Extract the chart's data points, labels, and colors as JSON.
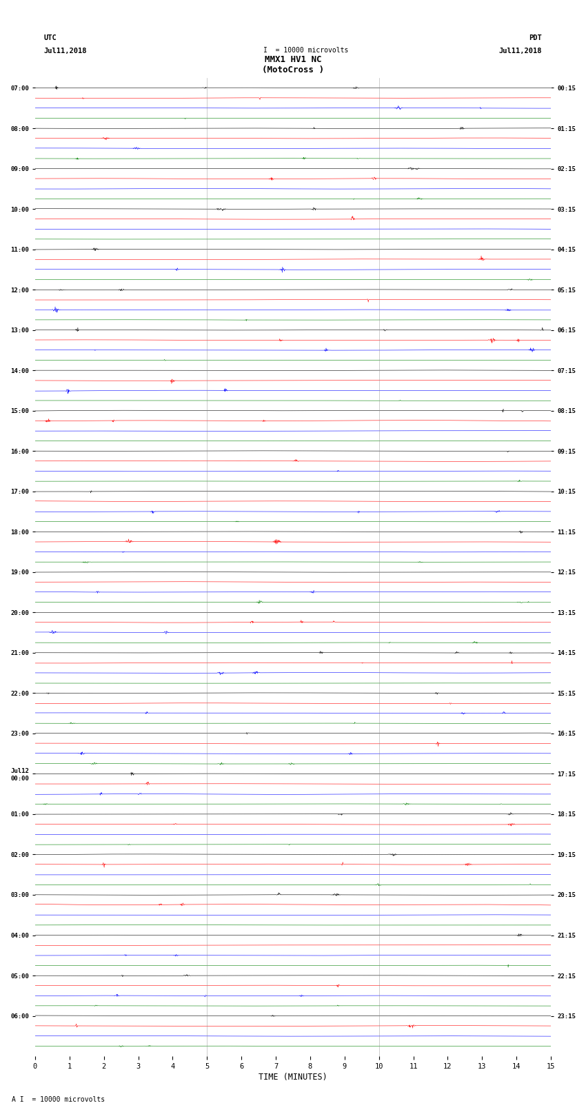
{
  "title_line1": "MMX1 HV1 NC",
  "title_line2": "(MotoCross )",
  "left_header": "UTC",
  "left_date": "Jul11,2018",
  "right_header": "PDT",
  "right_date": "Jul11,2018",
  "xlabel": "TIME (MINUTES)",
  "scale_label": "= 10000 microvolts",
  "xmin": 0,
  "xmax": 15,
  "trace_colors": [
    "black",
    "red",
    "blue",
    "green"
  ],
  "background_color": "white",
  "grid_color": "#888888",
  "utc_labels": [
    "07:00",
    "08:00",
    "09:00",
    "10:00",
    "11:00",
    "12:00",
    "13:00",
    "14:00",
    "15:00",
    "16:00",
    "17:00",
    "18:00",
    "19:00",
    "20:00",
    "21:00",
    "22:00",
    "23:00",
    "Jul12\n00:00",
    "01:00",
    "02:00",
    "03:00",
    "04:00",
    "05:00",
    "06:00"
  ],
  "pdt_labels": [
    "00:15",
    "01:15",
    "02:15",
    "03:15",
    "04:15",
    "05:15",
    "06:15",
    "07:15",
    "08:15",
    "09:15",
    "10:15",
    "11:15",
    "12:15",
    "13:15",
    "14:15",
    "15:15",
    "16:15",
    "17:15",
    "18:15",
    "19:15",
    "20:15",
    "21:15",
    "22:15",
    "23:15"
  ],
  "n_hours": 24,
  "traces_per_hour": 4,
  "minute_ticks": [
    0,
    1,
    2,
    3,
    4,
    5,
    6,
    7,
    8,
    9,
    10,
    11,
    12,
    13,
    14,
    15
  ],
  "vline_positions": [
    5,
    10
  ]
}
